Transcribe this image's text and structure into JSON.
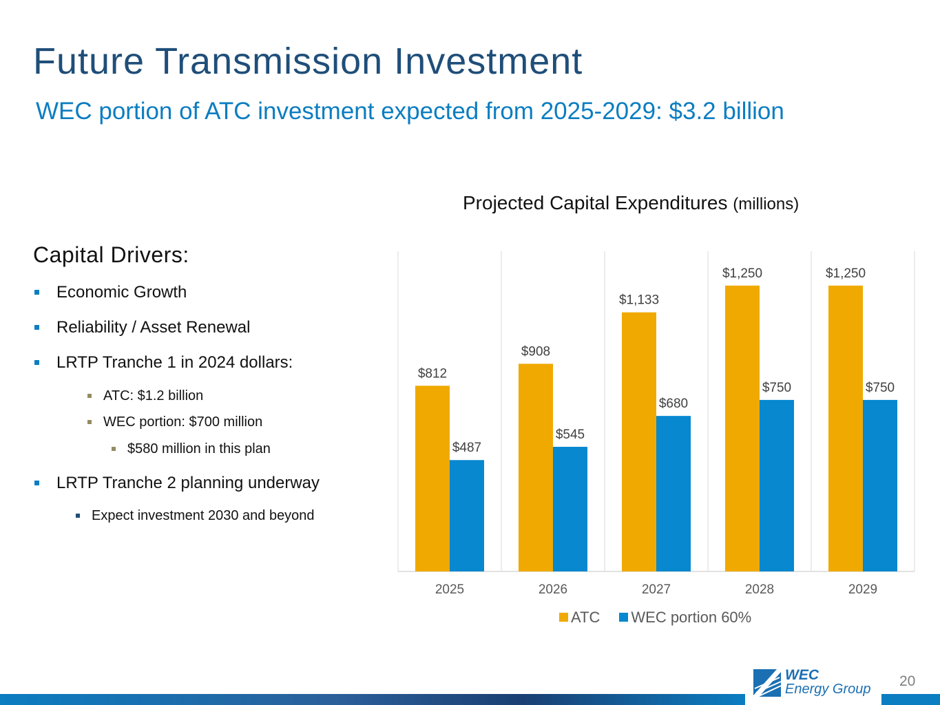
{
  "slide": {
    "title": "Future Transmission Investment",
    "subtitle": "WEC portion of ATC investment expected from 2025-2029: $3.2 billion",
    "page_number": "20"
  },
  "drivers": {
    "heading": "Capital Drivers:",
    "items": [
      {
        "text": "Economic Growth"
      },
      {
        "text": "Reliability / Asset Renewal"
      },
      {
        "text": "LRTP Tranche 1 in 2024 dollars:"
      },
      {
        "text": "ATC: $1.2 billion"
      },
      {
        "text": "WEC portion: $700 million"
      },
      {
        "text": "$580 million in this plan"
      },
      {
        "text": "LRTP Tranche 2 planning underway"
      },
      {
        "text": "Expect investment 2030 and beyond"
      }
    ]
  },
  "logo": {
    "line1": "WEC",
    "line2": "Energy Group"
  },
  "chart_data": {
    "type": "bar",
    "title": "Projected Capital Expenditures",
    "title_unit": "(millions)",
    "categories": [
      "2025",
      "2026",
      "2027",
      "2028",
      "2029"
    ],
    "series": [
      {
        "name": "ATC",
        "color": "#f0a900",
        "values": [
          812,
          908,
          1133,
          1250,
          1250
        ],
        "labels": [
          "$812",
          "$908",
          "$1,133",
          "$1,250",
          "$1,250"
        ]
      },
      {
        "name": "WEC portion 60%",
        "color": "#0788cf",
        "values": [
          487,
          545,
          680,
          750,
          750
        ],
        "labels": [
          "$487",
          "$545",
          "$680",
          "$750",
          "$750"
        ]
      }
    ],
    "ylim": [
      0,
      1400
    ],
    "grid": "vertical separators",
    "legend_position": "bottom"
  }
}
